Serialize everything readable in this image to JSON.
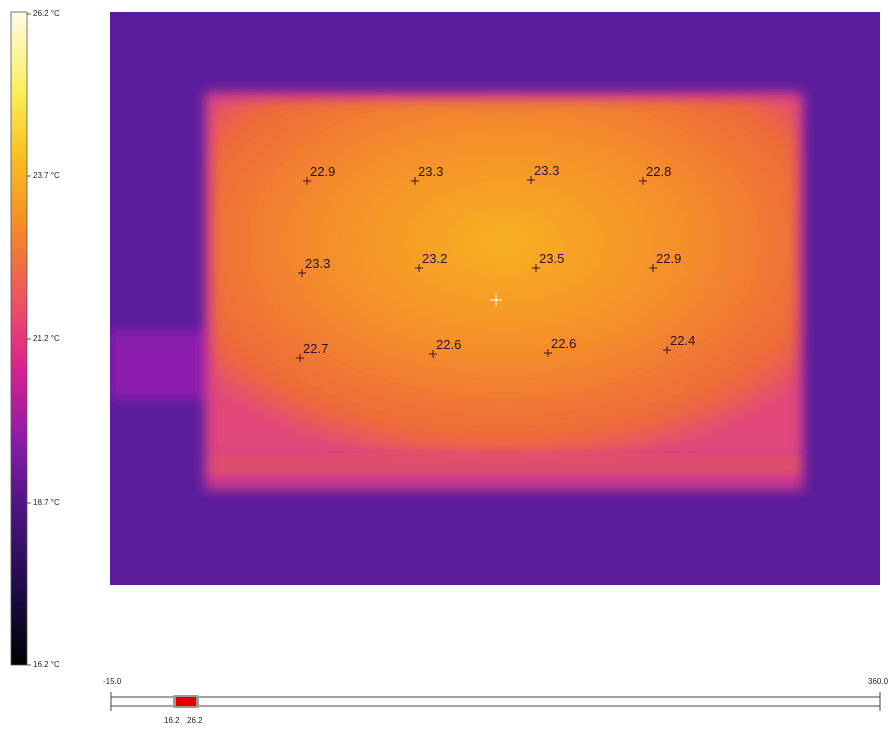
{
  "color_scale": {
    "labels": [
      "26.2 °C",
      "23.7 °C",
      "21.2 °C",
      "18.7 °C",
      "16.2 °C"
    ]
  },
  "spots": [
    "22.9",
    "23.3",
    "23.3",
    "22.8",
    "23.3",
    "23.2",
    "23.5",
    "22.9",
    "22.7",
    "22.6",
    "22.6",
    "22.4"
  ],
  "range_slider": {
    "min": "-15.0",
    "max": "360.0",
    "low": "16.2",
    "high": "26.2"
  }
}
